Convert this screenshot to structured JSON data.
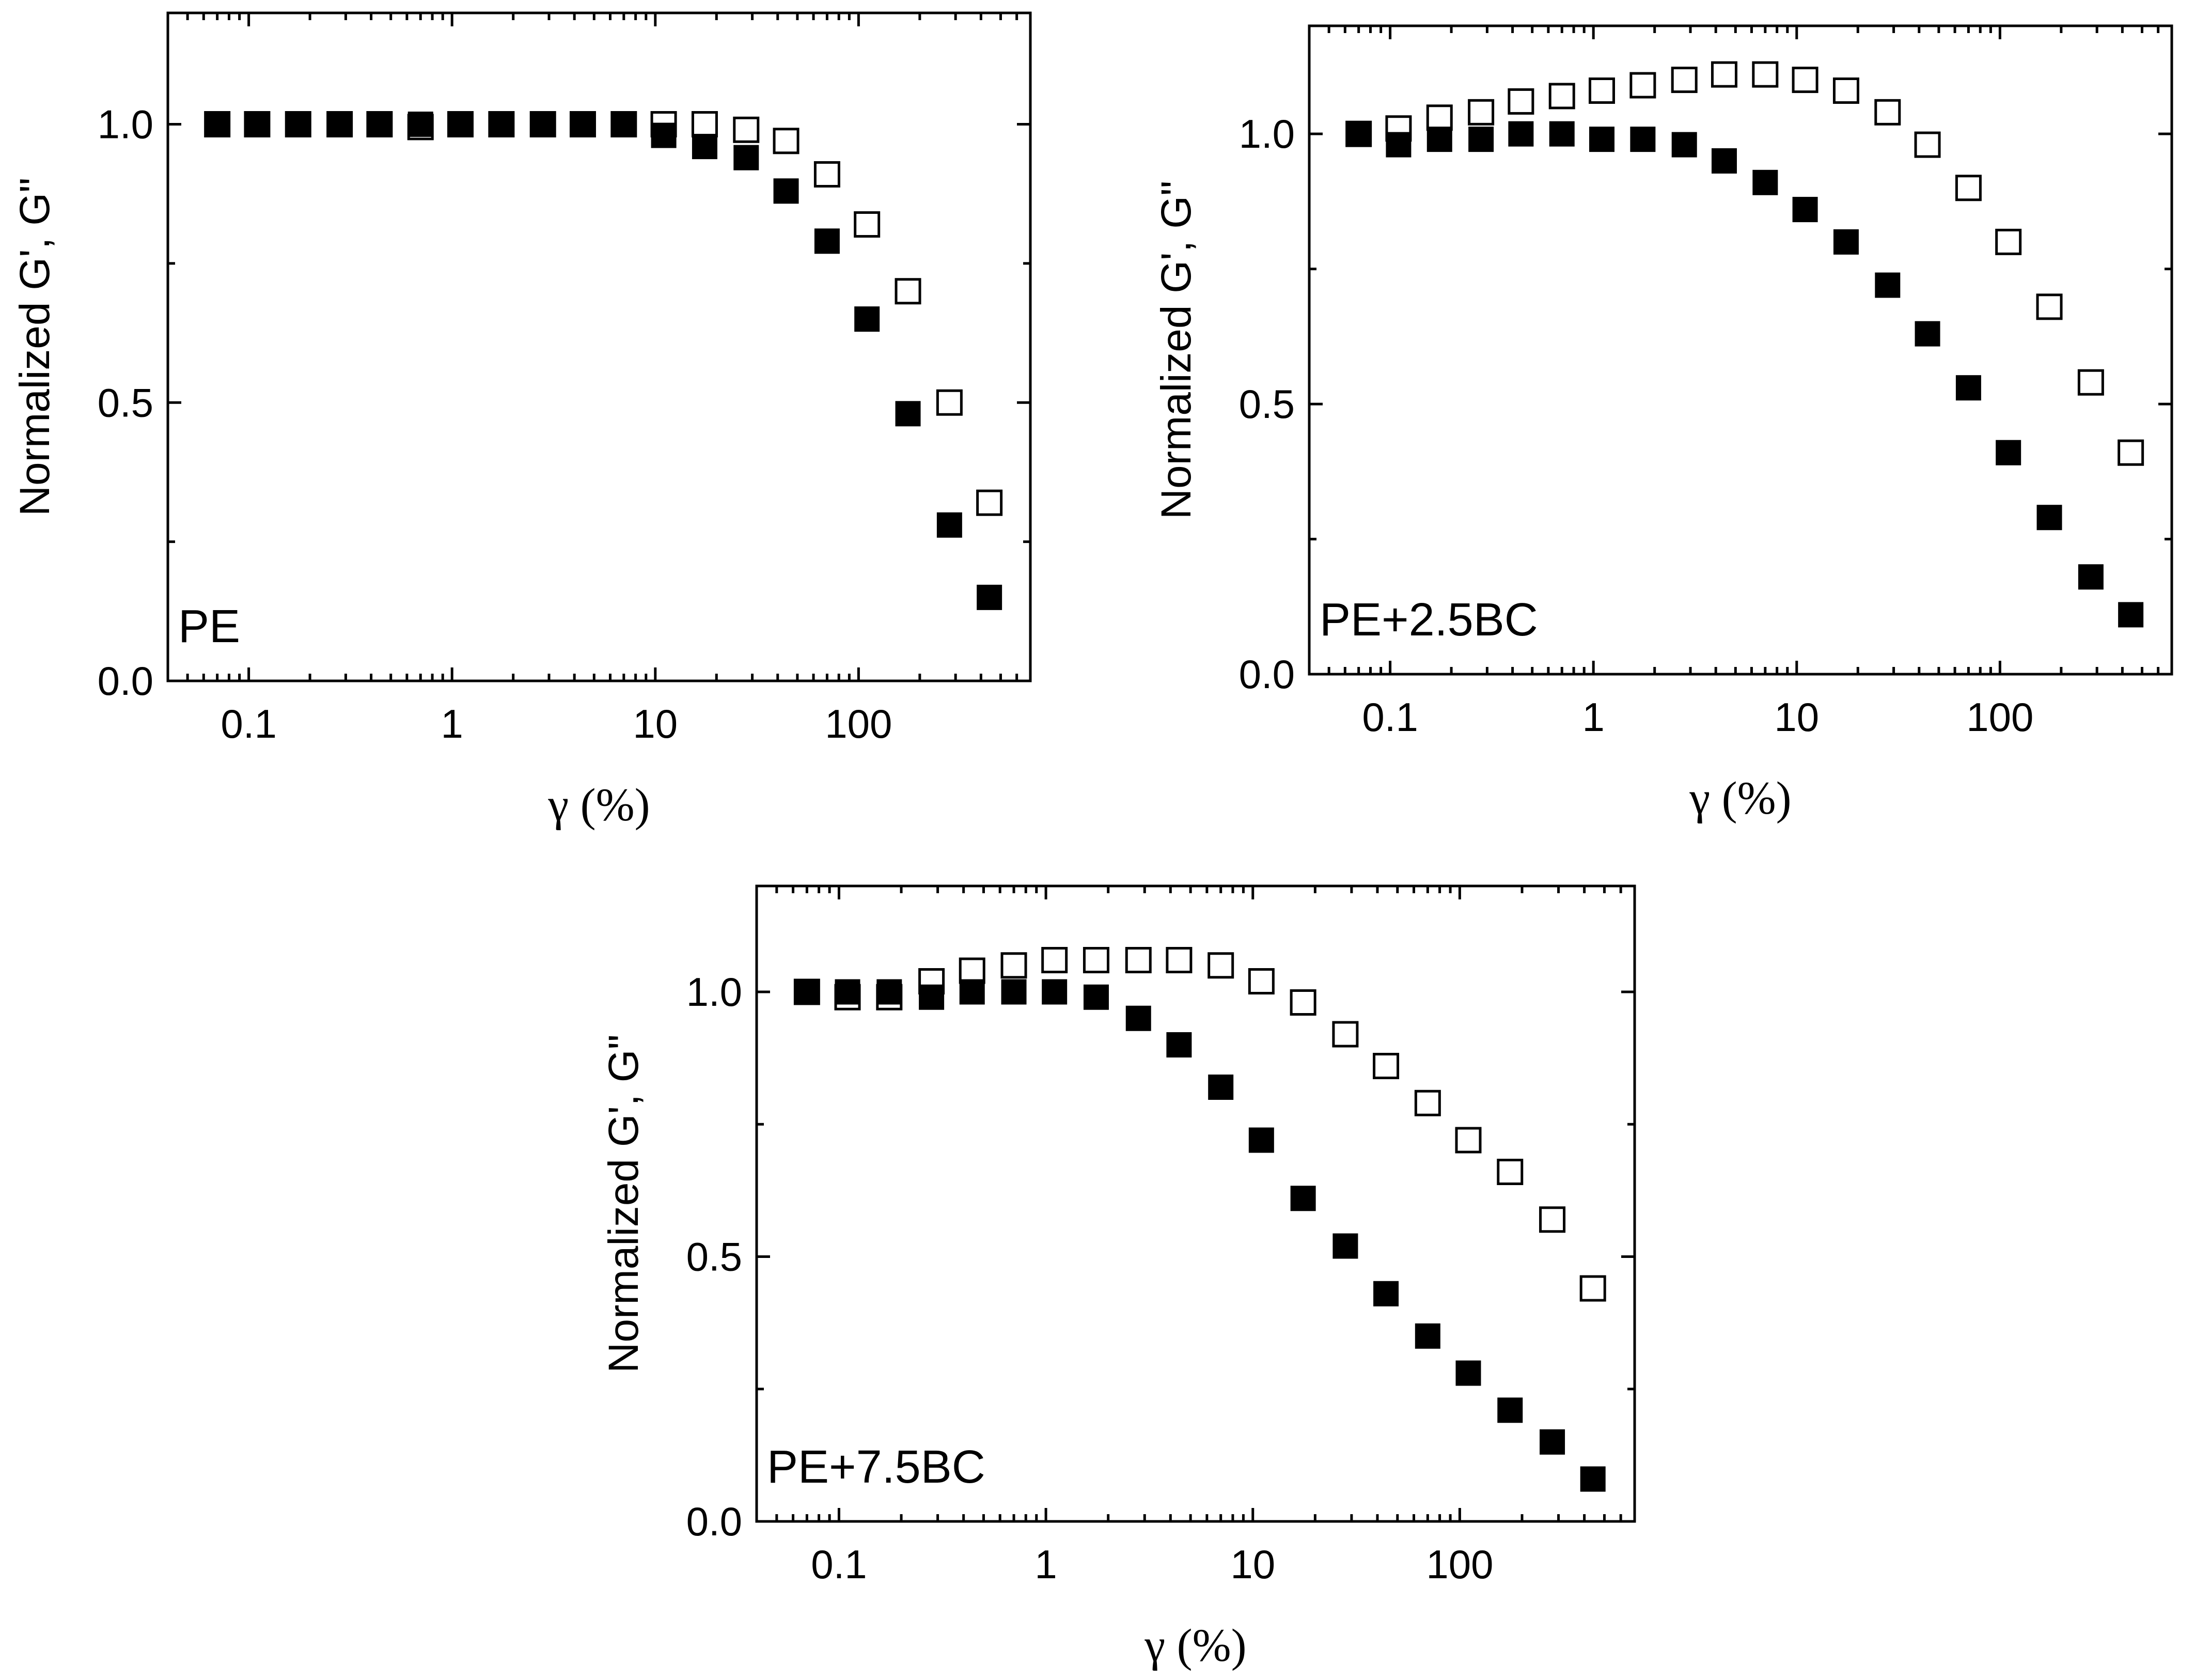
{
  "chart_data": [
    {
      "type": "scatter",
      "label": "PE",
      "xlabel": "γ (%)",
      "ylabel": "Normalized G', G\"",
      "xscale": "log",
      "xlim": [
        0.04,
        700
      ],
      "ylim": [
        0.0,
        1.2
      ],
      "x_ticks": [
        0.1,
        1,
        10,
        100
      ],
      "x_tick_labels": [
        "0.1",
        "1",
        "10",
        "100"
      ],
      "y_ticks": [
        0.0,
        0.5,
        1.0
      ],
      "y_tick_labels": [
        "0.0",
        "0.5",
        "1.0"
      ],
      "series": [
        {
          "name": "G'",
          "marker": "filled-square",
          "x": [
            0.07,
            0.11,
            0.175,
            0.28,
            0.44,
            0.7,
            1.1,
            1.75,
            2.8,
            4.4,
            7,
            11,
            17.5,
            28,
            44,
            70,
            110,
            175,
            280,
            440
          ],
          "y": [
            1.0,
            1.0,
            1.0,
            1.0,
            1.0,
            1.0,
            1.0,
            1.0,
            1.0,
            1.0,
            1.0,
            0.98,
            0.96,
            0.94,
            0.88,
            0.79,
            0.65,
            0.48,
            0.28,
            0.15
          ]
        },
        {
          "name": "G\"",
          "marker": "open-square",
          "x": [
            0.07,
            0.11,
            0.175,
            0.28,
            0.44,
            0.7,
            1.1,
            1.75,
            2.8,
            4.4,
            7,
            11,
            17.5,
            28,
            44,
            70,
            110,
            175,
            280,
            440
          ],
          "y": [
            1.0,
            1.0,
            1.0,
            1.0,
            1.0,
            0.995,
            1.0,
            1.0,
            1.0,
            1.0,
            1.0,
            1.0,
            1.0,
            0.99,
            0.97,
            0.91,
            0.82,
            0.7,
            0.5,
            0.32
          ]
        }
      ]
    },
    {
      "type": "scatter",
      "label": "PE+2.5BC",
      "xlabel": "γ (%)",
      "ylabel": "Normalized G', G\"",
      "xscale": "log",
      "xlim": [
        0.04,
        700
      ],
      "ylim": [
        0.0,
        1.2
      ],
      "x_ticks": [
        0.1,
        1,
        10,
        100
      ],
      "x_tick_labels": [
        "0.1",
        "1",
        "10",
        "100"
      ],
      "y_ticks": [
        0.0,
        0.5,
        1.0
      ],
      "y_tick_labels": [
        "0.0",
        "0.5",
        "1.0"
      ],
      "series": [
        {
          "name": "G'",
          "marker": "filled-square",
          "x": [
            0.07,
            0.11,
            0.175,
            0.28,
            0.44,
            0.7,
            1.1,
            1.75,
            2.8,
            4.4,
            7,
            11,
            17.5,
            28,
            44,
            70,
            110,
            175,
            280,
            440
          ],
          "y": [
            1.0,
            0.98,
            0.99,
            0.99,
            1.0,
            1.0,
            0.99,
            0.99,
            0.98,
            0.95,
            0.91,
            0.86,
            0.8,
            0.72,
            0.63,
            0.53,
            0.41,
            0.29,
            0.18,
            0.11
          ]
        },
        {
          "name": "G\"",
          "marker": "open-square",
          "x": [
            0.07,
            0.11,
            0.175,
            0.28,
            0.44,
            0.7,
            1.1,
            1.75,
            2.8,
            4.4,
            7,
            11,
            17.5,
            28,
            44,
            70,
            110,
            175,
            280,
            440
          ],
          "y": [
            1.0,
            1.01,
            1.03,
            1.04,
            1.06,
            1.07,
            1.08,
            1.09,
            1.1,
            1.11,
            1.11,
            1.1,
            1.08,
            1.04,
            0.98,
            0.9,
            0.8,
            0.68,
            0.54,
            0.41
          ]
        }
      ]
    },
    {
      "type": "scatter",
      "label": "PE+7.5BC",
      "xlabel": "γ (%)",
      "ylabel": "Normalized G', G\"",
      "xscale": "log",
      "xlim": [
        0.04,
        700
      ],
      "ylim": [
        0.0,
        1.2
      ],
      "x_ticks": [
        0.1,
        1,
        10,
        100
      ],
      "x_tick_labels": [
        "0.1",
        "1",
        "10",
        "100"
      ],
      "y_ticks": [
        0.0,
        0.5,
        1.0
      ],
      "y_tick_labels": [
        "0.0",
        "0.5",
        "1.0"
      ],
      "series": [
        {
          "name": "G'",
          "marker": "filled-square",
          "x": [
            0.07,
            0.11,
            0.175,
            0.28,
            0.44,
            0.7,
            1.1,
            1.75,
            2.8,
            4.4,
            7,
            11,
            17.5,
            28,
            44,
            70,
            110,
            175,
            280,
            440
          ],
          "y": [
            1.0,
            1.0,
            1.0,
            0.99,
            1.0,
            1.0,
            1.0,
            0.99,
            0.95,
            0.9,
            0.82,
            0.72,
            0.61,
            0.52,
            0.43,
            0.35,
            0.28,
            0.21,
            0.15,
            0.08
          ]
        },
        {
          "name": "G\"",
          "marker": "open-square",
          "x": [
            0.07,
            0.11,
            0.175,
            0.28,
            0.44,
            0.7,
            1.1,
            1.75,
            2.8,
            4.4,
            7,
            11,
            17.5,
            28,
            44,
            70,
            110,
            175,
            280,
            440
          ],
          "y": [
            1.0,
            0.99,
            0.99,
            1.02,
            1.04,
            1.05,
            1.06,
            1.06,
            1.06,
            1.06,
            1.05,
            1.02,
            0.98,
            0.92,
            0.86,
            0.79,
            0.72,
            0.66,
            0.57,
            0.44
          ]
        }
      ]
    }
  ]
}
